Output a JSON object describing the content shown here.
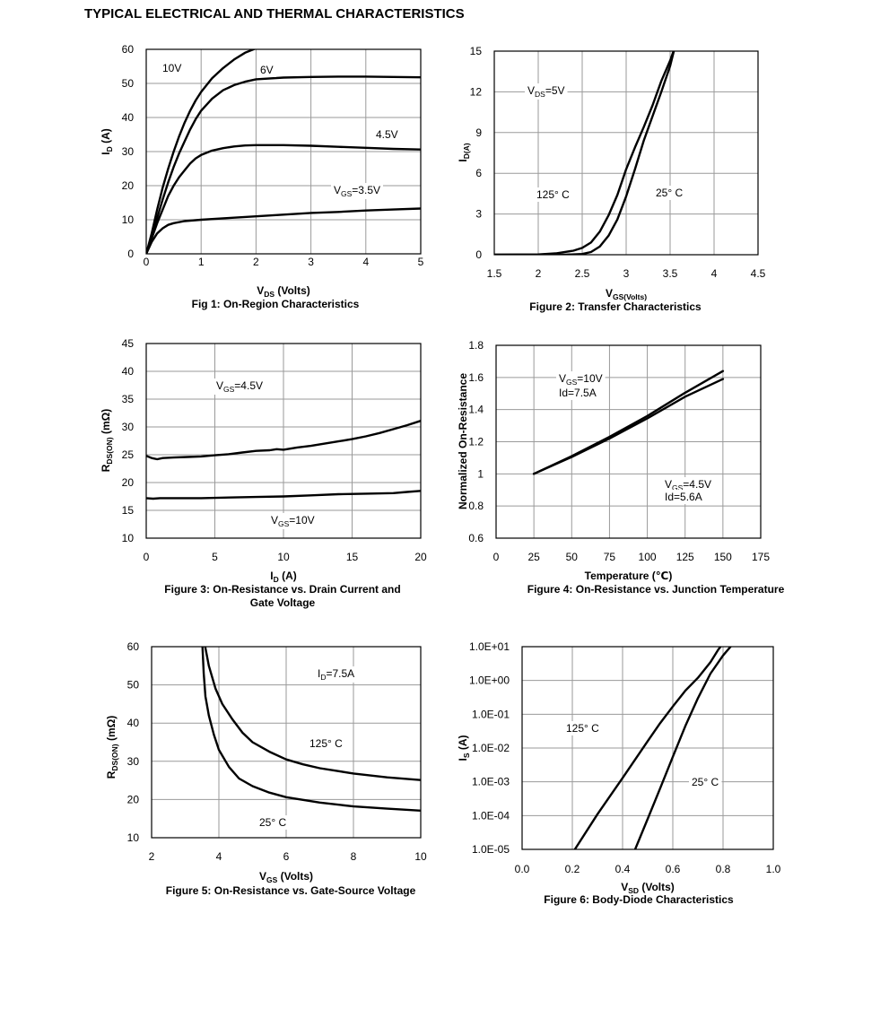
{
  "page": {
    "title": "TYPICAL ELECTRICAL AND THERMAL CHARACTERISTICS"
  },
  "chart_data": [
    {
      "type": "line",
      "caption": "Fig 1: On-Region Characteristics",
      "xlabel": "V_DS (Volts)",
      "ylabel": "I_D (A)",
      "xlim": [
        0,
        5
      ],
      "ylim": [
        0,
        60
      ],
      "xticks": [
        "0",
        "1",
        "2",
        "3",
        "4",
        "5"
      ],
      "yticks": [
        "0",
        "10",
        "20",
        "30",
        "40",
        "50",
        "60"
      ],
      "grid": true,
      "series": [
        {
          "name": "10V",
          "points": [
            [
              0,
              0
            ],
            [
              0.1,
              6
            ],
            [
              0.2,
              13
            ],
            [
              0.3,
              19.5
            ],
            [
              0.4,
              25
            ],
            [
              0.5,
              30
            ],
            [
              0.6,
              34.5
            ],
            [
              0.7,
              38.5
            ],
            [
              0.8,
              42
            ],
            [
              0.9,
              45
            ],
            [
              1,
              47.5
            ],
            [
              1.2,
              51.5
            ],
            [
              1.4,
              54.5
            ],
            [
              1.6,
              57
            ],
            [
              1.8,
              59
            ],
            [
              2.0,
              60.3
            ],
            [
              2.2,
              61.2
            ]
          ]
        },
        {
          "name": "6V",
          "points": [
            [
              0,
              0
            ],
            [
              0.1,
              5
            ],
            [
              0.2,
              10.5
            ],
            [
              0.3,
              16
            ],
            [
              0.4,
              21
            ],
            [
              0.5,
              25.5
            ],
            [
              0.6,
              29.5
            ],
            [
              0.7,
              33
            ],
            [
              0.8,
              36.5
            ],
            [
              0.9,
              39.5
            ],
            [
              1,
              42
            ],
            [
              1.2,
              45.5
            ],
            [
              1.4,
              48
            ],
            [
              1.6,
              49.5
            ],
            [
              1.8,
              50.5
            ],
            [
              2,
              51.2
            ],
            [
              2.5,
              51.7
            ],
            [
              3,
              51.9
            ],
            [
              3.5,
              52
            ],
            [
              4,
              52
            ],
            [
              4.5,
              51.9
            ],
            [
              5,
              51.8
            ]
          ]
        },
        {
          "name": "4.5V",
          "points": [
            [
              0,
              0
            ],
            [
              0.1,
              4.5
            ],
            [
              0.2,
              9
            ],
            [
              0.3,
              13
            ],
            [
              0.4,
              17
            ],
            [
              0.5,
              20
            ],
            [
              0.6,
              22.5
            ],
            [
              0.7,
              24.5
            ],
            [
              0.8,
              26.5
            ],
            [
              0.9,
              28
            ],
            [
              1,
              29
            ],
            [
              1.2,
              30.3
            ],
            [
              1.4,
              31
            ],
            [
              1.6,
              31.5
            ],
            [
              1.8,
              31.8
            ],
            [
              2,
              31.9
            ],
            [
              2.5,
              31.9
            ],
            [
              3,
              31.7
            ],
            [
              3.5,
              31.4
            ],
            [
              4,
              31.1
            ],
            [
              4.5,
              30.8
            ],
            [
              5,
              30.6
            ]
          ]
        },
        {
          "name": "V_GS=3.5V",
          "points": [
            [
              0,
              0
            ],
            [
              0.1,
              3.5
            ],
            [
              0.2,
              6
            ],
            [
              0.3,
              7.5
            ],
            [
              0.4,
              8.5
            ],
            [
              0.5,
              9
            ],
            [
              0.7,
              9.6
            ],
            [
              1,
              10
            ],
            [
              1.5,
              10.5
            ],
            [
              2,
              11
            ],
            [
              2.5,
              11.5
            ],
            [
              3,
              12
            ],
            [
              3.5,
              12.3
            ],
            [
              4,
              12.7
            ],
            [
              4.5,
              13
            ],
            [
              5,
              13.3
            ]
          ]
        }
      ],
      "annotations": [
        "10V",
        "6V",
        "4.5V",
        "V_GS=3.5V"
      ]
    },
    {
      "type": "line",
      "caption": "Figure 2: Transfer Characteristics",
      "xlabel": "V_GS(Volts)",
      "ylabel": "I_D(A)",
      "xlim": [
        1.5,
        4.5
      ],
      "ylim": [
        0,
        15
      ],
      "xticks": [
        "1.5",
        "2",
        "2.5",
        "3",
        "3.5",
        "4",
        "4.5"
      ],
      "yticks": [
        "0",
        "3",
        "6",
        "9",
        "12",
        "15"
      ],
      "grid": true,
      "series": [
        {
          "name": "125° C",
          "points": [
            [
              1.5,
              0
            ],
            [
              2.0,
              0.02
            ],
            [
              2.2,
              0.1
            ],
            [
              2.4,
              0.3
            ],
            [
              2.5,
              0.5
            ],
            [
              2.6,
              0.9
            ],
            [
              2.7,
              1.7
            ],
            [
              2.8,
              2.9
            ],
            [
              2.9,
              4.4
            ],
            [
              3.0,
              6.3
            ],
            [
              3.1,
              7.9
            ],
            [
              3.2,
              9.4
            ],
            [
              3.3,
              11
            ],
            [
              3.4,
              12.8
            ],
            [
              3.5,
              14.3
            ],
            [
              3.55,
              15.2
            ]
          ]
        },
        {
          "name": "25° C",
          "points": [
            [
              1.5,
              0
            ],
            [
              2.3,
              0
            ],
            [
              2.5,
              0.05
            ],
            [
              2.6,
              0.2
            ],
            [
              2.7,
              0.6
            ],
            [
              2.8,
              1.4
            ],
            [
              2.9,
              2.6
            ],
            [
              3.0,
              4.3
            ],
            [
              3.1,
              6.3
            ],
            [
              3.2,
              8.4
            ],
            [
              3.3,
              10.2
            ],
            [
              3.4,
              12
            ],
            [
              3.5,
              13.9
            ],
            [
              3.55,
              15.2
            ]
          ]
        }
      ],
      "annotations": [
        "V_DS=5V",
        "125° C",
        "25° C"
      ]
    },
    {
      "type": "line",
      "caption_lines": [
        "Figure 3: On-Resistance vs. Drain Current and",
        "Gate Voltage"
      ],
      "xlabel": "I_D (A)",
      "ylabel": "R_DS(ON) (mΩ)",
      "xlim": [
        0,
        20
      ],
      "ylim": [
        10,
        45
      ],
      "xticks": [
        "0",
        "5",
        "10",
        "15",
        "20"
      ],
      "yticks": [
        "10",
        "15",
        "20",
        "25",
        "30",
        "35",
        "40",
        "45"
      ],
      "grid": true,
      "series": [
        {
          "name": "V_GS=4.5V",
          "points": [
            [
              0,
              24.8
            ],
            [
              0.4,
              24.4
            ],
            [
              0.8,
              24.2
            ],
            [
              1.2,
              24.4
            ],
            [
              2,
              24.5
            ],
            [
              3,
              24.6
            ],
            [
              4,
              24.7
            ],
            [
              5,
              24.9
            ],
            [
              6,
              25.1
            ],
            [
              7,
              25.4
            ],
            [
              8,
              25.7
            ],
            [
              9,
              25.8
            ],
            [
              9.5,
              26
            ],
            [
              10,
              25.9
            ],
            [
              11,
              26.3
            ],
            [
              12,
              26.6
            ],
            [
              13,
              27
            ],
            [
              14,
              27.4
            ],
            [
              15,
              27.8
            ],
            [
              16,
              28.3
            ],
            [
              17,
              28.9
            ],
            [
              18,
              29.6
            ],
            [
              19,
              30.3
            ],
            [
              20,
              31.1
            ]
          ]
        },
        {
          "name": "V_GS=10V",
          "points": [
            [
              0,
              17.2
            ],
            [
              0.5,
              17.1
            ],
            [
              1,
              17.2
            ],
            [
              2,
              17.2
            ],
            [
              4,
              17.2
            ],
            [
              6,
              17.3
            ],
            [
              8,
              17.4
            ],
            [
              10,
              17.5
            ],
            [
              12,
              17.7
            ],
            [
              14,
              17.9
            ],
            [
              16,
              18
            ],
            [
              18,
              18.1
            ],
            [
              19,
              18.3
            ],
            [
              20,
              18.5
            ]
          ]
        }
      ],
      "annotations": [
        "V_GS=4.5V",
        "V_GS=10V"
      ]
    },
    {
      "type": "line",
      "caption": "Figure 4: On-Resistance vs. Junction Temperature",
      "xlabel": "Temperature (℃)",
      "ylabel": "Normalized On-Resistance",
      "xlim": [
        0,
        175
      ],
      "ylim": [
        0.6,
        1.8
      ],
      "xticks": [
        "0",
        "25",
        "50",
        "75",
        "100",
        "125",
        "150",
        "175"
      ],
      "yticks": [
        "0.6",
        "0.8",
        "1",
        "1.2",
        "1.4",
        "1.6",
        "1.8"
      ],
      "grid": true,
      "series": [
        {
          "name": "V_GS=10V Id=7.5A",
          "points": [
            [
              25,
              1.0
            ],
            [
              50,
              1.105
            ],
            [
              75,
              1.22
            ],
            [
              100,
              1.345
            ],
            [
              125,
              1.48
            ],
            [
              150,
              1.59
            ]
          ]
        },
        {
          "name": "V_GS=4.5V Id=5.6A",
          "points": [
            [
              25,
              1.0
            ],
            [
              50,
              1.11
            ],
            [
              75,
              1.23
            ],
            [
              100,
              1.36
            ],
            [
              125,
              1.505
            ],
            [
              150,
              1.64
            ]
          ]
        }
      ],
      "annotations": [
        "V_GS=10V",
        "Id=7.5A",
        "V_GS=4.5V",
        "Id=5.6A"
      ]
    },
    {
      "type": "line",
      "caption": "Figure 5: On-Resistance vs. Gate-Source Voltage",
      "xlabel": "V_GS (Volts)",
      "ylabel": "R_DS(ON) (mΩ)",
      "xlim": [
        2,
        10
      ],
      "ylim": [
        10,
        60
      ],
      "xticks": [
        "2",
        "4",
        "6",
        "8",
        "10"
      ],
      "yticks": [
        "10",
        "20",
        "30",
        "40",
        "50",
        "60"
      ],
      "grid": true,
      "series": [
        {
          "name": "125° C",
          "points": [
            [
              3.55,
              62
            ],
            [
              3.7,
              55
            ],
            [
              3.9,
              49
            ],
            [
              4.1,
              45
            ],
            [
              4.4,
              41
            ],
            [
              4.7,
              37.5
            ],
            [
              5,
              35
            ],
            [
              5.5,
              32.5
            ],
            [
              6,
              30.5
            ],
            [
              6.5,
              29.2
            ],
            [
              7,
              28.2
            ],
            [
              8,
              26.8
            ],
            [
              9,
              25.8
            ],
            [
              10,
              25.1
            ]
          ]
        },
        {
          "name": "25° C",
          "points": [
            [
              3.5,
              62
            ],
            [
              3.55,
              53
            ],
            [
              3.6,
              47
            ],
            [
              3.7,
              42
            ],
            [
              3.85,
              37
            ],
            [
              4,
              33
            ],
            [
              4.3,
              28.5
            ],
            [
              4.6,
              25.5
            ],
            [
              5,
              23.5
            ],
            [
              5.5,
              21.8
            ],
            [
              6,
              20.6
            ],
            [
              7,
              19.2
            ],
            [
              8,
              18.2
            ],
            [
              9,
              17.6
            ],
            [
              10,
              17.1
            ]
          ]
        }
      ],
      "annotations": [
        "I_D=7.5A",
        "125° C",
        "25° C"
      ]
    },
    {
      "type": "line",
      "caption": "Figure 6: Body-Diode Characteristics",
      "xlabel": "V_SD (Volts)",
      "ylabel": "I_S (A)",
      "xlim": [
        0,
        1
      ],
      "ylim": [
        1e-05,
        10
      ],
      "yscale": "log",
      "xticks": [
        "0.0",
        "0.2",
        "0.4",
        "0.6",
        "0.8",
        "1.0"
      ],
      "yticks": [
        "1.0E-05",
        "1.0E-04",
        "1.0E-03",
        "1.0E-02",
        "1.0E-01",
        "1.0E+00",
        "1.0E+01"
      ],
      "grid": true,
      "series": [
        {
          "name": "125° C",
          "points": [
            [
              0.21,
              1e-05
            ],
            [
              0.3,
              0.00011
            ],
            [
              0.4,
              0.0013
            ],
            [
              0.5,
              0.016
            ],
            [
              0.55,
              0.055
            ],
            [
              0.6,
              0.17
            ],
            [
              0.65,
              0.5
            ],
            [
              0.7,
              1.2
            ],
            [
              0.75,
              3.5
            ],
            [
              0.78,
              8
            ],
            [
              0.79,
              10
            ]
          ]
        },
        {
          "name": "25° C",
          "points": [
            [
              0.45,
              1e-05
            ],
            [
              0.5,
              8e-05
            ],
            [
              0.55,
              0.00065
            ],
            [
              0.6,
              0.0055
            ],
            [
              0.65,
              0.045
            ],
            [
              0.7,
              0.3
            ],
            [
              0.75,
              1.6
            ],
            [
              0.8,
              5.5
            ],
            [
              0.83,
              10
            ]
          ]
        }
      ],
      "annotations": [
        "125° C",
        "25° C"
      ]
    }
  ]
}
